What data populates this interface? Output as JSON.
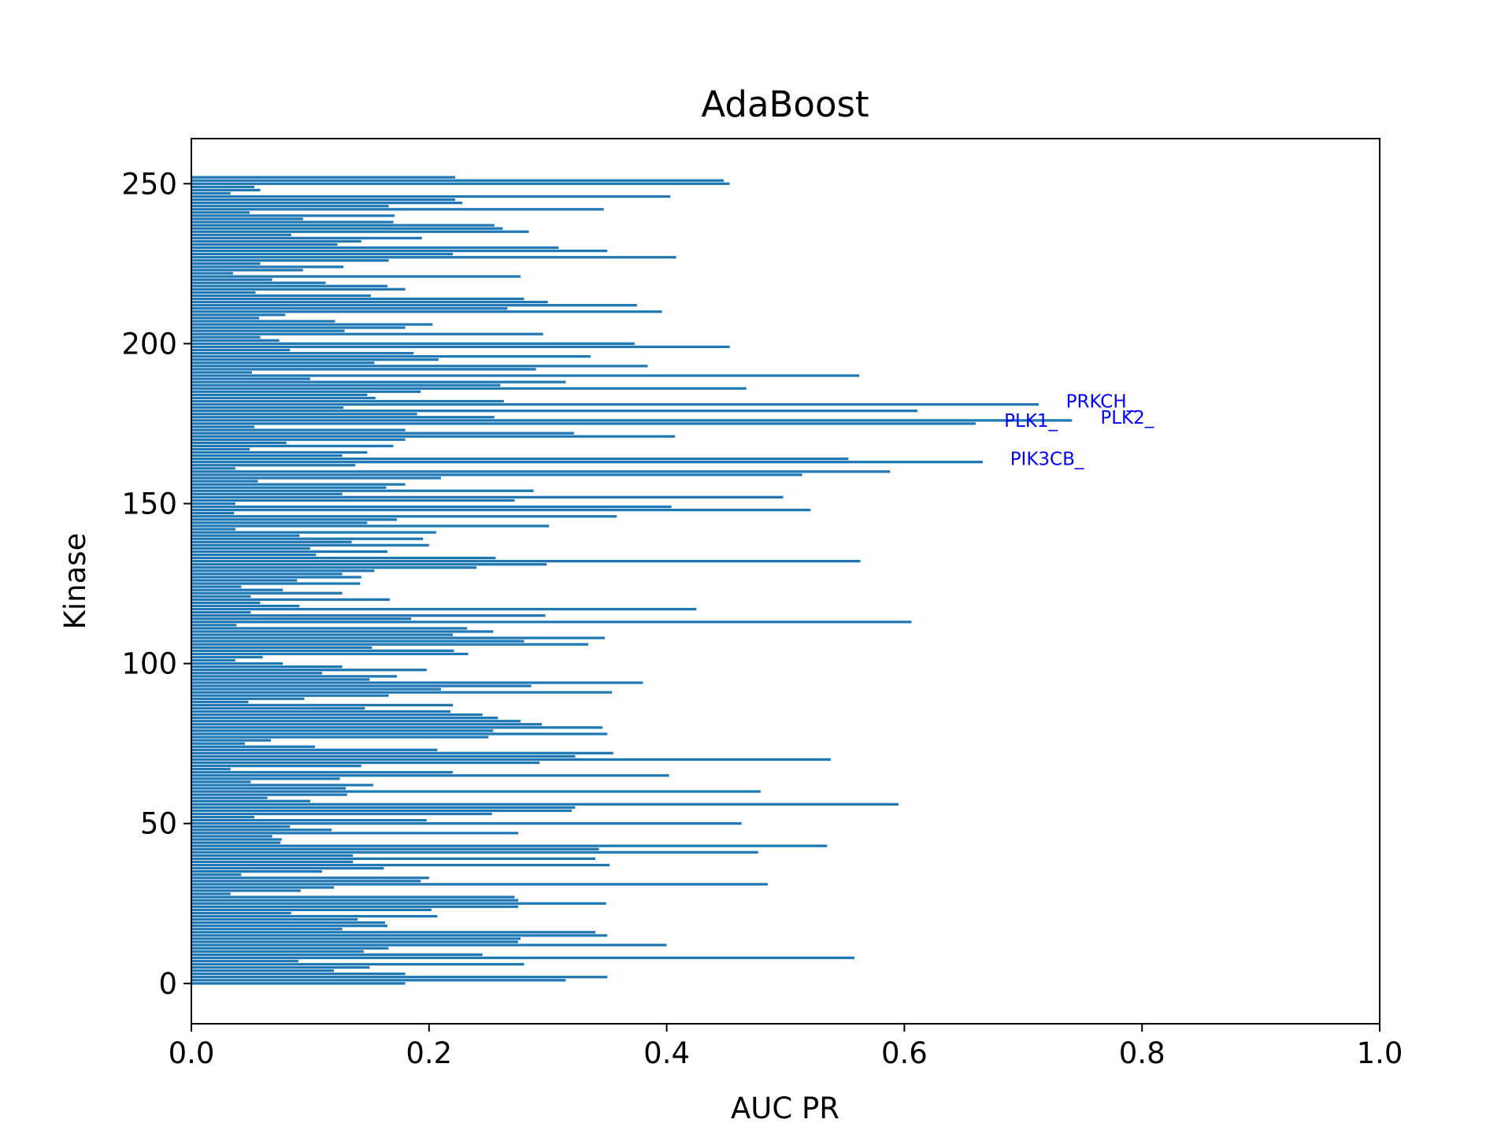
{
  "chart_data": {
    "type": "barh",
    "title": "AdaBoost",
    "xlabel": "AUC PR",
    "ylabel": "Kinase",
    "color": "#1f77b4",
    "values": [
      0.18,
      0.315,
      0.35,
      0.18,
      0.12,
      0.15,
      0.28,
      0.09,
      0.558,
      0.245,
      0.145,
      0.166,
      0.4,
      0.275,
      0.277,
      0.35,
      0.34,
      0.127,
      0.165,
      0.163,
      0.14,
      0.207,
      0.084,
      0.202,
      0.275,
      0.349,
      0.275,
      0.272,
      0.033,
      0.092,
      0.12,
      0.485,
      0.193,
      0.2,
      0.042,
      0.11,
      0.162,
      0.352,
      0.136,
      0.34,
      0.136,
      0.477,
      0.343,
      0.535,
      0.075,
      0.076,
      0.068,
      0.275,
      0.118,
      0.083,
      0.463,
      0.198,
      0.053,
      0.253,
      0.32,
      0.323,
      0.595,
      0.1,
      0.064,
      0.131,
      0.479,
      0.13,
      0.153,
      0.05,
      0.125,
      0.402,
      0.22,
      0.033,
      0.143,
      0.293,
      0.538,
      0.323,
      0.355,
      0.207,
      0.104,
      0.045,
      0.067,
      0.25,
      0.35,
      0.254,
      0.346,
      0.295,
      0.277,
      0.258,
      0.245,
      0.218,
      0.146,
      0.22,
      0.048,
      0.095,
      0.166,
      0.354,
      0.21,
      0.286,
      0.38,
      0.15,
      0.173,
      0.11,
      0.198,
      0.127,
      0.077,
      0.037,
      0.06,
      0.233,
      0.221,
      0.152,
      0.334,
      0.28,
      0.348,
      0.22,
      0.254,
      0.232,
      0.038,
      0.606,
      0.185,
      0.298,
      0.05,
      0.425,
      0.091,
      0.058,
      0.167,
      0.05,
      0.127,
      0.077,
      0.042,
      0.142,
      0.089,
      0.143,
      0.127,
      0.154,
      0.24,
      0.299,
      0.563,
      0.256,
      0.105,
      0.165,
      0.1,
      0.2,
      0.135,
      0.195,
      0.091,
      0.206,
      0.037,
      0.301,
      0.148,
      0.173,
      0.358,
      0.036,
      0.521,
      0.404,
      0.037,
      0.272,
      0.498,
      0.127,
      0.288,
      0.164,
      0.18,
      0.056,
      0.21,
      0.514,
      0.588,
      0.037,
      0.138,
      0.666,
      0.553,
      0.127,
      0.148,
      0.049,
      0.17,
      0.08,
      0.18,
      0.407,
      0.322,
      0.18,
      0.053,
      0.66,
      0.741,
      0.255,
      0.19,
      0.611,
      0.128,
      0.713,
      0.263,
      0.155,
      0.148,
      0.193,
      0.467,
      0.26,
      0.315,
      0.1,
      0.562,
      0.051,
      0.29,
      0.384,
      0.154,
      0.208,
      0.336,
      0.187,
      0.083,
      0.453,
      0.373,
      0.074,
      0.058,
      0.296,
      0.129,
      0.18,
      0.203,
      0.121,
      0.057,
      0.079,
      0.396,
      0.266,
      0.375,
      0.3,
      0.28,
      0.151,
      0.054,
      0.18,
      0.165,
      0.113,
      0.068,
      0.277,
      0.035,
      0.094,
      0.128,
      0.058,
      0.166,
      0.408,
      0.22,
      0.35,
      0.309,
      0.123,
      0.143,
      0.194,
      0.084,
      0.284,
      0.262,
      0.255,
      0.17,
      0.094,
      0.171,
      0.049,
      0.347,
      0.166,
      0.228,
      0.222,
      0.403,
      0.033,
      0.058,
      0.053,
      0.453,
      0.448,
      0.222
    ],
    "xlim": [
      0,
      1
    ],
    "xticks": [
      {
        "value": 0,
        "label": "0.0"
      },
      0.2,
      0.4,
      0.6,
      0.8,
      {
        "value": 1,
        "label": "1.0"
      }
    ],
    "ylim": [
      -12.6,
      264.1
    ],
    "yticks": [
      0,
      50,
      100,
      150,
      200,
      250
    ],
    "annotations": [
      {
        "text": "PRKCH_",
        "x": 0.736,
        "y": 182
      },
      {
        "text": "PLK1_",
        "x": 0.684,
        "y": 176
      },
      {
        "text": "PLK2_",
        "x": 0.765,
        "y": 177
      },
      {
        "text": "PIK3CB_",
        "x": 0.689,
        "y": 164
      }
    ]
  }
}
